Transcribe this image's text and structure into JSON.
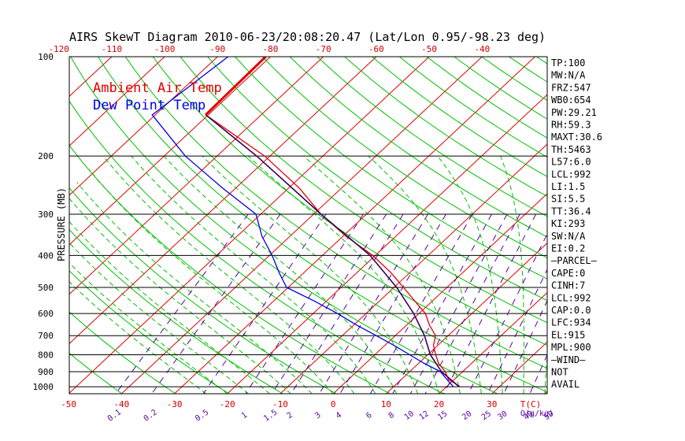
{
  "chart_data": {
    "type": "line",
    "title": "AIRS SkewT Diagram 2010-06-23/20:08:20.47 (Lat/Lon 0.95/-98.23 deg)",
    "ylabel": "PRESSURE (MB)",
    "y_scale": "log",
    "ylim": [
      1050,
      100
    ],
    "pressure_ticks": [
      "100",
      "200",
      "300",
      "400",
      "500",
      "600",
      "700",
      "800",
      "900",
      "1000"
    ],
    "pressure_tick_values": [
      100,
      200,
      300,
      400,
      500,
      600,
      700,
      800,
      900,
      1000
    ],
    "bottom_temp_ticks": [
      "-50",
      "-40",
      "-30",
      "-20",
      "-10",
      "0",
      "10",
      "20",
      "30"
    ],
    "bottom_temp_values": [
      -50,
      -40,
      -30,
      -20,
      -10,
      0,
      10,
      20,
      30
    ],
    "bottom_temp_label": "T(C)",
    "top_temp_ticks": [
      "-120",
      "-110",
      "-100",
      "-90",
      "-80",
      "-70",
      "-60",
      "-50",
      "-40"
    ],
    "top_temp_values": [
      -120,
      -110,
      -100,
      -90,
      -80,
      -70,
      -60,
      -50,
      -40
    ],
    "mixing_ratio_ticks": [
      "0.1",
      "0.2",
      "0.5",
      "1",
      "1.5",
      "2",
      "3",
      "4",
      "6",
      "8",
      "10",
      "12",
      "15",
      "20",
      "25",
      "30",
      "40",
      "50"
    ],
    "mixing_ratio_values": [
      0.1,
      0.2,
      0.5,
      1,
      1.5,
      2,
      3,
      4,
      6,
      8,
      10,
      12,
      15,
      20,
      25,
      30,
      40,
      50
    ],
    "mixing_ratio_label": "Q(g/kg)",
    "legend": [
      {
        "label": "Ambient Air Temp",
        "color": "#e00000"
      },
      {
        "label": "Dew Point Temp",
        "color": "#0000e0"
      }
    ],
    "series": [
      {
        "name": "Ambient Air Temp",
        "color": "#e00000",
        "points": [
          {
            "p": 100,
            "t": -80.9
          },
          {
            "p": 150,
            "t": -80.5
          },
          {
            "p": 200,
            "t": -61.0
          },
          {
            "p": 250,
            "t": -48.0
          },
          {
            "p": 300,
            "t": -38.6
          },
          {
            "p": 350,
            "t": -29.4
          },
          {
            "p": 400,
            "t": -20.5
          },
          {
            "p": 450,
            "t": -13.7
          },
          {
            "p": 500,
            "t": -8.2
          },
          {
            "p": 550,
            "t": -3.3
          },
          {
            "p": 600,
            "t": 1.2
          },
          {
            "p": 650,
            "t": 4.3
          },
          {
            "p": 700,
            "t": 7.6
          },
          {
            "p": 750,
            "t": 9.2
          },
          {
            "p": 800,
            "t": 11.5
          },
          {
            "p": 850,
            "t": 13.8
          },
          {
            "p": 900,
            "t": 16.7
          },
          {
            "p": 950,
            "t": 18.9
          },
          {
            "p": 1000,
            "t": 22.6
          }
        ]
      },
      {
        "name": "Dew Point Temp",
        "color": "#0000e0",
        "points": [
          {
            "p": 100,
            "t": -88.0
          },
          {
            "p": 150,
            "t": -90.6
          },
          {
            "p": 200,
            "t": -76.0
          },
          {
            "p": 250,
            "t": -62.5
          },
          {
            "p": 300,
            "t": -50.9
          },
          {
            "p": 350,
            "t": -45.3
          },
          {
            "p": 400,
            "t": -39.5
          },
          {
            "p": 450,
            "t": -34.8
          },
          {
            "p": 500,
            "t": -30.3
          },
          {
            "p": 550,
            "t": -22.3
          },
          {
            "p": 600,
            "t": -15.4
          },
          {
            "p": 650,
            "t": -9.5
          },
          {
            "p": 700,
            "t": -3.6
          },
          {
            "p": 750,
            "t": 1.8
          },
          {
            "p": 800,
            "t": 6.6
          },
          {
            "p": 850,
            "t": 11.1
          },
          {
            "p": 900,
            "t": 15.8
          },
          {
            "p": 950,
            "t": 18.6
          },
          {
            "p": 1000,
            "t": 21.3
          }
        ]
      },
      {
        "name": "",
        "color": "#3a0058",
        "points": [
          {
            "p": 150,
            "t": -80.5
          },
          {
            "p": 200,
            "t": -62.5
          },
          {
            "p": 300,
            "t": -38.6
          },
          {
            "p": 400,
            "t": -21.0
          },
          {
            "p": 500,
            "t": -9.5
          },
          {
            "p": 600,
            "t": -1.0
          },
          {
            "p": 700,
            "t": 5.5
          },
          {
            "p": 800,
            "t": 10.5
          },
          {
            "p": 900,
            "t": 16.0
          },
          {
            "p": 1000,
            "t": 22.4
          }
        ]
      }
    ],
    "indices": [
      "TP:100",
      "MW:N/A",
      "FRZ:547",
      "WB0:654",
      "PW:29.21",
      "RH:59.3",
      "MAXT:30.6",
      "TH:5463",
      "L57:6.0",
      "LCL:992",
      "LI:1.5",
      "SI:5.5",
      "TT:36.4",
      "KI:293",
      "SW:N/A",
      "EI:0.2",
      "—PARCEL—",
      "CAPE:0",
      "CINH:7",
      "LCL:992",
      "CAP:0.0",
      "LFC:934",
      "EL:915",
      "MPL:900",
      "—WIND—",
      "NOT",
      "AVAIL"
    ],
    "grid": true,
    "colors": {
      "isotherm": "#e00000",
      "dry_adiabat": "#00c000",
      "moist_adiabat": "#00c000",
      "mixing_ratio": "#5a00a0",
      "isobar": "#000000",
      "temp_labels": "#d00000",
      "mixing_labels": "#5a00a0"
    }
  }
}
